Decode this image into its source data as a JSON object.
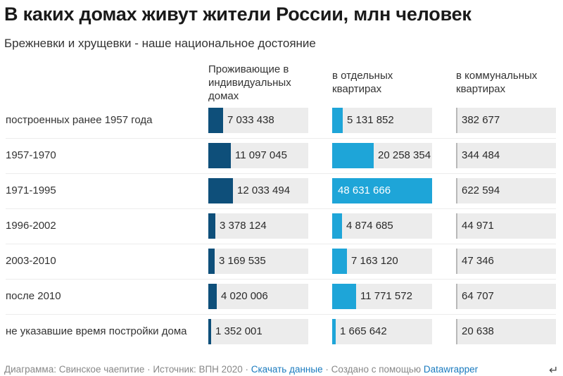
{
  "title": "В каких домах живут жители России, млн человек",
  "subtitle": "Брежневки и хрущевки - наше национальное достояние",
  "footer": {
    "chart_by": "Диаграмма: Свинское чаепитие",
    "sep1": " · ",
    "source": "Источник: ВПН 2020",
    "sep2": " · ",
    "download": "Скачать данные",
    "sep3": " · ",
    "made_with": "Создано с помощью ",
    "tool": "Datawrapper"
  },
  "colors": {
    "individual": "#0e4f7a",
    "separate": "#1ea5d8",
    "communal": "#b8b8b8",
    "cell_bg": "#ececec"
  },
  "chart_data": {
    "type": "table",
    "title": "В каких домах живут жители России, млн человек",
    "subtitle": "Брежневки и хрущевки - наше национальное достояние",
    "categories": [
      "построенных ранее 1957 года",
      "1957-1970",
      "1971-1995",
      "1996-2002",
      "2003-2010",
      "после 2010",
      "не указавшие время постройки дома"
    ],
    "series": [
      {
        "name": "Проживающие в индивидуальных домах",
        "values": [
          7033438,
          11097045,
          12033494,
          3378124,
          3169535,
          4020006,
          1352001
        ],
        "labels": [
          "7 033 438",
          "11 097 045",
          "12 033 494",
          "3 378 124",
          "3 169 535",
          "4 020 006",
          "1 352 001"
        ]
      },
      {
        "name": "в отдельных квартирах",
        "values": [
          5131852,
          20258354,
          48631666,
          4874685,
          7163120,
          11771572,
          1665642
        ],
        "labels": [
          "5 131 852",
          "20 258 354",
          "48 631 666",
          "4 874 685",
          "7 163 120",
          "11 771 572",
          "1 665 642"
        ]
      },
      {
        "name": "в коммунальных квартирах",
        "values": [
          382677,
          344484,
          622594,
          44971,
          47346,
          64707,
          20638
        ],
        "labels": [
          "382 677",
          "344 484",
          "622 594",
          "44 971",
          "47 346",
          "64 707",
          "20 638"
        ]
      }
    ],
    "scale_max": 48631666
  }
}
